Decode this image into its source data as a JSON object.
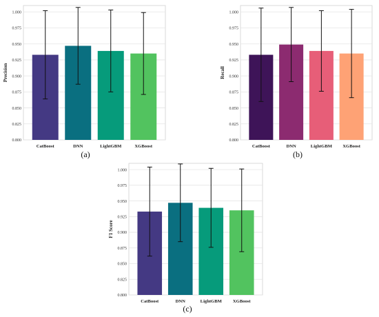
{
  "figure": {
    "panels": [
      {
        "id": "a",
        "caption": "(a)"
      },
      {
        "id": "b",
        "caption": "(b)"
      },
      {
        "id": "c",
        "caption": "(c)"
      }
    ]
  },
  "chart_data": [
    {
      "type": "bar",
      "ylabel": "Precision",
      "xlabel": "",
      "categories": [
        "CatBoost",
        "DNN",
        "LightGBM",
        "XGBoost"
      ],
      "values": [
        0.933,
        0.947,
        0.939,
        0.935
      ],
      "error": [
        0.069,
        0.06,
        0.064,
        0.064
      ],
      "colors": [
        "#443983",
        "#0a6f80",
        "#069b7b",
        "#52c35f"
      ],
      "ylim": [
        0.8,
        1.01
      ],
      "yticks": [
        "0.800",
        "0.825",
        "0.850",
        "0.875",
        "0.900",
        "0.925",
        "0.950",
        "0.975",
        "1.000"
      ],
      "grid": true,
      "caption": "(a)"
    },
    {
      "type": "bar",
      "ylabel": "Recall",
      "xlabel": "",
      "categories": [
        "CatBoost",
        "DNN",
        "LightGBM",
        "XGBoost"
      ],
      "values": [
        0.933,
        0.949,
        0.939,
        0.935
      ],
      "error": [
        0.073,
        0.058,
        0.063,
        0.069
      ],
      "colors": [
        "#3e1458",
        "#8c2b70",
        "#e75e78",
        "#fea275"
      ],
      "ylim": [
        0.8,
        1.01
      ],
      "yticks": [
        "0.800",
        "0.825",
        "0.850",
        "0.875",
        "0.900",
        "0.925",
        "0.950",
        "0.975",
        "1.000"
      ],
      "grid": true,
      "caption": "(b)"
    },
    {
      "type": "bar",
      "ylabel": "F1 Score",
      "xlabel": "",
      "categories": [
        "CatBoost",
        "DNN",
        "LightGBM",
        "XGBoost"
      ],
      "values": [
        0.933,
        0.947,
        0.939,
        0.935
      ],
      "error": [
        0.071,
        0.062,
        0.063,
        0.066
      ],
      "colors": [
        "#443983",
        "#0a6f80",
        "#069b7b",
        "#52c35f"
      ],
      "ylim": [
        0.8,
        1.01
      ],
      "yticks": [
        "0.800",
        "0.825",
        "0.850",
        "0.875",
        "0.900",
        "0.925",
        "0.950",
        "0.975",
        "1.000"
      ],
      "grid": true,
      "caption": "(c)"
    }
  ]
}
